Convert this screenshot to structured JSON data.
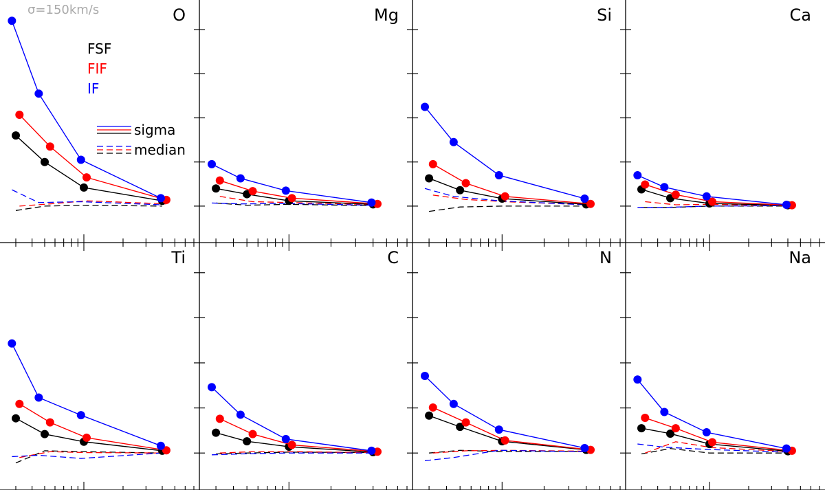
{
  "chart_data": {
    "type": "line",
    "annotation": "σ=150km/s",
    "legend": {
      "methods": [
        {
          "name": "FSF",
          "color": "#000000"
        },
        {
          "name": "FIF",
          "color": "#ff0000"
        },
        {
          "name": "IF",
          "color": "#0000ff"
        }
      ],
      "styles": [
        {
          "name": "sigma",
          "dash": "solid"
        },
        {
          "name": "median",
          "dash": "dashed"
        }
      ]
    },
    "colors": {
      "FSF": "#000000",
      "FIF": "#ff0000",
      "IF": "#0000ff"
    },
    "x_scale": "log",
    "xlim": [
      25,
      700
    ],
    "ylim": [
      -0.05,
      0.45
    ],
    "panels": [
      {
        "element": "O",
        "sigma": {
          "FSF": {
            "x": [
              30,
              50,
              100,
              400
            ],
            "y": [
              0.16,
              0.1,
              0.042,
              0.012
            ]
          },
          "FIF": {
            "x": [
              32,
              55,
              105,
              430
            ],
            "y": [
              0.207,
              0.135,
              0.065,
              0.014
            ]
          },
          "IF": {
            "x": [
              28,
              45,
              95,
              390
            ],
            "y": [
              0.42,
              0.255,
              0.105,
              0.018
            ]
          }
        },
        "median": {
          "FSF": {
            "x": [
              30,
              50,
              100,
              400
            ],
            "y": [
              -0.01,
              0.0,
              0.002,
              0.0
            ]
          },
          "FIF": {
            "x": [
              32,
              55,
              105,
              430
            ],
            "y": [
              0.0,
              0.005,
              0.012,
              0.005
            ]
          },
          "IF": {
            "x": [
              28,
              45,
              95,
              390
            ],
            "y": [
              0.037,
              0.008,
              0.01,
              0.003
            ]
          }
        }
      },
      {
        "element": "Mg",
        "sigma": {
          "FSF": {
            "x": [
              30,
              50,
              100,
              400
            ],
            "y": [
              0.04,
              0.027,
              0.012,
              0.004
            ]
          },
          "FIF": {
            "x": [
              32,
              55,
              105,
              430
            ],
            "y": [
              0.058,
              0.034,
              0.018,
              0.005
            ]
          },
          "IF": {
            "x": [
              28,
              45,
              95,
              390
            ],
            "y": [
              0.095,
              0.063,
              0.035,
              0.008
            ]
          }
        },
        "median": {
          "FSF": {
            "x": [
              30,
              50,
              100,
              400
            ],
            "y": [
              0.007,
              0.002,
              0.004,
              0.001
            ]
          },
          "FIF": {
            "x": [
              32,
              55,
              105,
              430
            ],
            "y": [
              0.022,
              0.01,
              0.008,
              0.003
            ]
          },
          "IF": {
            "x": [
              28,
              45,
              95,
              390
            ],
            "y": [
              0.007,
              0.005,
              0.006,
              0.002
            ]
          }
        }
      },
      {
        "element": "Si",
        "sigma": {
          "FSF": {
            "x": [
              30,
              50,
              100,
              400
            ],
            "y": [
              0.063,
              0.036,
              0.017,
              0.004
            ]
          },
          "FIF": {
            "x": [
              32,
              55,
              105,
              430
            ],
            "y": [
              0.095,
              0.052,
              0.022,
              0.005
            ]
          },
          "IF": {
            "x": [
              28,
              45,
              95,
              390
            ],
            "y": [
              0.225,
              0.145,
              0.07,
              0.017
            ]
          }
        },
        "median": {
          "FSF": {
            "x": [
              30,
              50,
              100,
              400
            ],
            "y": [
              -0.012,
              -0.002,
              0.0,
              0.0
            ]
          },
          "FIF": {
            "x": [
              32,
              55,
              105,
              430
            ],
            "y": [
              0.025,
              0.015,
              0.01,
              0.003
            ]
          },
          "IF": {
            "x": [
              28,
              45,
              95,
              390
            ],
            "y": [
              0.04,
              0.022,
              0.012,
              0.003
            ]
          }
        }
      },
      {
        "element": "Ca",
        "sigma": {
          "FSF": {
            "x": [
              30,
              50,
              100,
              400
            ],
            "y": [
              0.038,
              0.018,
              0.006,
              0.002
            ]
          },
          "FIF": {
            "x": [
              32,
              55,
              105,
              430
            ],
            "y": [
              0.049,
              0.026,
              0.01,
              0.002
            ]
          },
          "IF": {
            "x": [
              28,
              45,
              95,
              390
            ],
            "y": [
              0.07,
              0.043,
              0.022,
              0.003
            ]
          }
        },
        "median": {
          "FSF": {
            "x": [
              30,
              50,
              100,
              400
            ],
            "y": [
              -0.003,
              -0.003,
              0.0,
              0.0
            ]
          },
          "FIF": {
            "x": [
              32,
              55,
              105,
              430
            ],
            "y": [
              0.01,
              0.003,
              0.004,
              0.001
            ]
          },
          "IF": {
            "x": [
              28,
              45,
              95,
              390
            ],
            "y": [
              -0.003,
              -0.003,
              0.0,
              0.001
            ]
          }
        }
      },
      {
        "element": "Ti",
        "sigma": {
          "FSF": {
            "x": [
              30,
              50,
              100,
              400
            ],
            "y": [
              0.077,
              0.042,
              0.025,
              0.005
            ]
          },
          "FIF": {
            "x": [
              32,
              55,
              105,
              430
            ],
            "y": [
              0.109,
              0.068,
              0.034,
              0.006
            ]
          },
          "IF": {
            "x": [
              28,
              45,
              95,
              390
            ],
            "y": [
              0.243,
              0.123,
              0.084,
              0.016
            ]
          }
        },
        "median": {
          "FSF": {
            "x": [
              30,
              50,
              100,
              400
            ],
            "y": [
              -0.022,
              0.005,
              0.003,
              0.0
            ]
          },
          "FIF": {
            "x": [
              32,
              55,
              105,
              430
            ],
            "y": [
              -0.01,
              0.003,
              0.001,
              0.0
            ]
          },
          "IF": {
            "x": [
              28,
              45,
              95,
              390
            ],
            "y": [
              -0.008,
              -0.005,
              -0.012,
              0.0
            ]
          }
        }
      },
      {
        "element": "C",
        "sigma": {
          "FSF": {
            "x": [
              30,
              50,
              100,
              400
            ],
            "y": [
              0.045,
              0.026,
              0.014,
              0.002
            ]
          },
          "FIF": {
            "x": [
              32,
              55,
              105,
              430
            ],
            "y": [
              0.076,
              0.042,
              0.018,
              0.003
            ]
          },
          "IF": {
            "x": [
              28,
              45,
              95,
              390
            ],
            "y": [
              0.146,
              0.085,
              0.031,
              0.005
            ]
          }
        },
        "median": {
          "FSF": {
            "x": [
              30,
              50,
              100,
              400
            ],
            "y": [
              -0.002,
              0.0,
              0.002,
              0.001
            ]
          },
          "FIF": {
            "x": [
              32,
              55,
              105,
              430
            ],
            "y": [
              0.0,
              0.003,
              0.003,
              0.001
            ]
          },
          "IF": {
            "x": [
              28,
              45,
              95,
              390
            ],
            "y": [
              -0.004,
              -0.002,
              0.0,
              0.0
            ]
          }
        }
      },
      {
        "element": "N",
        "sigma": {
          "FSF": {
            "x": [
              30,
              50,
              100,
              400
            ],
            "y": [
              0.083,
              0.058,
              0.026,
              0.007
            ]
          },
          "FIF": {
            "x": [
              32,
              55,
              105,
              430
            ],
            "y": [
              0.101,
              0.068,
              0.028,
              0.007
            ]
          },
          "IF": {
            "x": [
              28,
              45,
              95,
              390
            ],
            "y": [
              0.171,
              0.109,
              0.052,
              0.011
            ]
          }
        },
        "median": {
          "FSF": {
            "x": [
              30,
              50,
              100,
              400
            ],
            "y": [
              0.0,
              0.006,
              0.003,
              0.004
            ]
          },
          "FIF": {
            "x": [
              32,
              55,
              105,
              430
            ],
            "y": [
              0.0,
              0.005,
              0.006,
              0.004
            ]
          },
          "IF": {
            "x": [
              28,
              45,
              95,
              390
            ],
            "y": [
              -0.017,
              -0.01,
              0.006,
              0.003
            ]
          }
        }
      },
      {
        "element": "Na",
        "sigma": {
          "FSF": {
            "x": [
              30,
              50,
              100,
              400
            ],
            "y": [
              0.055,
              0.043,
              0.02,
              0.004
            ]
          },
          "FIF": {
            "x": [
              32,
              55,
              105,
              430
            ],
            "y": [
              0.078,
              0.055,
              0.024,
              0.005
            ]
          },
          "IF": {
            "x": [
              28,
              45,
              95,
              390
            ],
            "y": [
              0.163,
              0.091,
              0.046,
              0.01
            ]
          }
        },
        "median": {
          "FSF": {
            "x": [
              30,
              50,
              100,
              400
            ],
            "y": [
              -0.002,
              0.01,
              0.0,
              0.0
            ]
          },
          "FIF": {
            "x": [
              32,
              55,
              105,
              430
            ],
            "y": [
              0.0,
              0.025,
              0.012,
              0.003
            ]
          },
          "IF": {
            "x": [
              28,
              45,
              95,
              390
            ],
            "y": [
              0.02,
              0.013,
              0.008,
              0.002
            ]
          }
        }
      }
    ]
  }
}
